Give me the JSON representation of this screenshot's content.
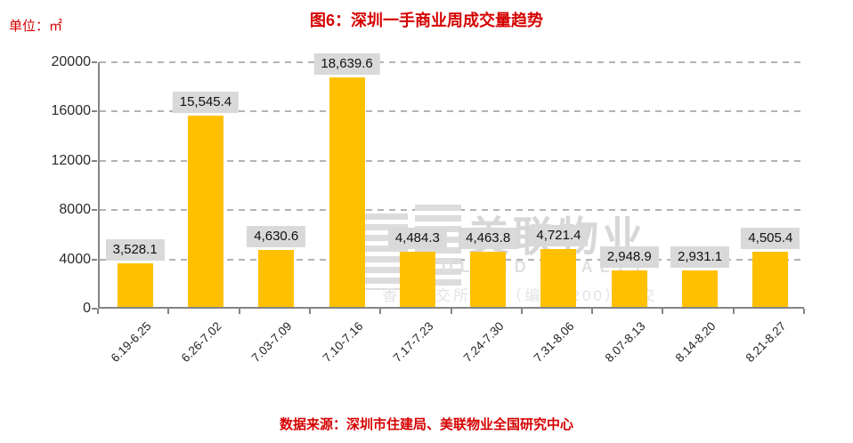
{
  "header": {
    "unit_label": "单位：㎡",
    "title": "图6：深圳一手商业周成交量趋势"
  },
  "chart_data": {
    "type": "bar",
    "title": "图6：深圳一手商业周成交量趋势",
    "unit": "㎡",
    "categories": [
      "6.19-6.25",
      "6.26-7.02",
      "7.03-7.09",
      "7.10-7.16",
      "7.17-7.23",
      "7.24-7.30",
      "7.31-8.06",
      "8.07-8.13",
      "8.14-8.20",
      "8.21-8.27"
    ],
    "values": [
      3528.1,
      15545.4,
      4630.6,
      18639.6,
      4484.3,
      4463.8,
      4721.4,
      2948.9,
      2931.1,
      4505.4
    ],
    "value_labels": [
      "3,528.1",
      "15,545.4",
      "4,630.6",
      "18,639.6",
      "4,484.3",
      "4,463.8",
      "4,721.4",
      "2,948.9",
      "2,931.1",
      "4,505.4"
    ],
    "ylim": [
      0,
      20000
    ],
    "yticks": [
      0,
      4000,
      8000,
      12000,
      16000,
      20000
    ],
    "grid": "dashed-horizontal",
    "legend": "none",
    "bar_color": "#FFC000",
    "label_background": "#D9D9D9"
  },
  "watermark": {
    "logo": "midland-logo",
    "name": "美联物业",
    "name_en": "MIDLAND REALTY",
    "tagline": "香港联交所上市（编号1200）成交"
  },
  "footer": {
    "source": "数据来源：深圳市住建局、美联物业全国研究中心"
  },
  "colors": {
    "accent_red": "#D60000",
    "bar_gold": "#FFC000",
    "label_gray": "#D9D9D9",
    "grid_gray": "#B3B3B3",
    "axis_gray": "#848484",
    "watermark_gray": "#DCDCDC"
  }
}
